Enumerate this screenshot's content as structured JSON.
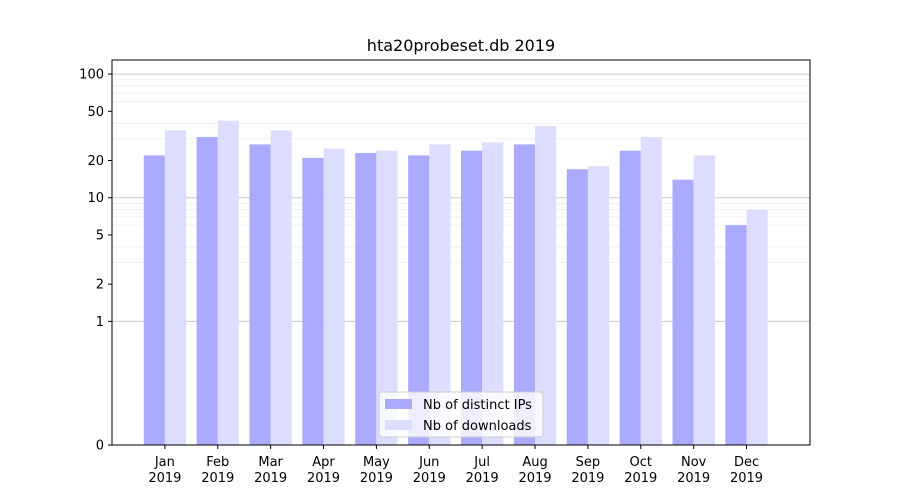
{
  "chart_data": {
    "type": "bar",
    "title": "hta20probeset.db 2019",
    "xlabel": "",
    "ylabel": "",
    "yscale": "symlog",
    "ylim": [
      0,
      130
    ],
    "yticks": [
      0,
      1,
      2,
      5,
      10,
      20,
      50,
      100
    ],
    "grid": true,
    "legend_position": "bottom-center",
    "categories": [
      [
        "Jan",
        "2019"
      ],
      [
        "Feb",
        "2019"
      ],
      [
        "Mar",
        "2019"
      ],
      [
        "Apr",
        "2019"
      ],
      [
        "May",
        "2019"
      ],
      [
        "Jun",
        "2019"
      ],
      [
        "Jul",
        "2019"
      ],
      [
        "Aug",
        "2019"
      ],
      [
        "Sep",
        "2019"
      ],
      [
        "Oct",
        "2019"
      ],
      [
        "Nov",
        "2019"
      ],
      [
        "Dec",
        "2019"
      ]
    ],
    "series": [
      {
        "name": "Nb of distinct IPs",
        "color": "#aaaaff",
        "values": [
          22,
          31,
          27,
          21,
          23,
          22,
          24,
          27,
          17,
          24,
          14,
          6
        ]
      },
      {
        "name": "Nb of downloads",
        "color": "#ddddff",
        "values": [
          35,
          42,
          35,
          25,
          24,
          27,
          28,
          38,
          18,
          31,
          22,
          8
        ]
      }
    ]
  }
}
